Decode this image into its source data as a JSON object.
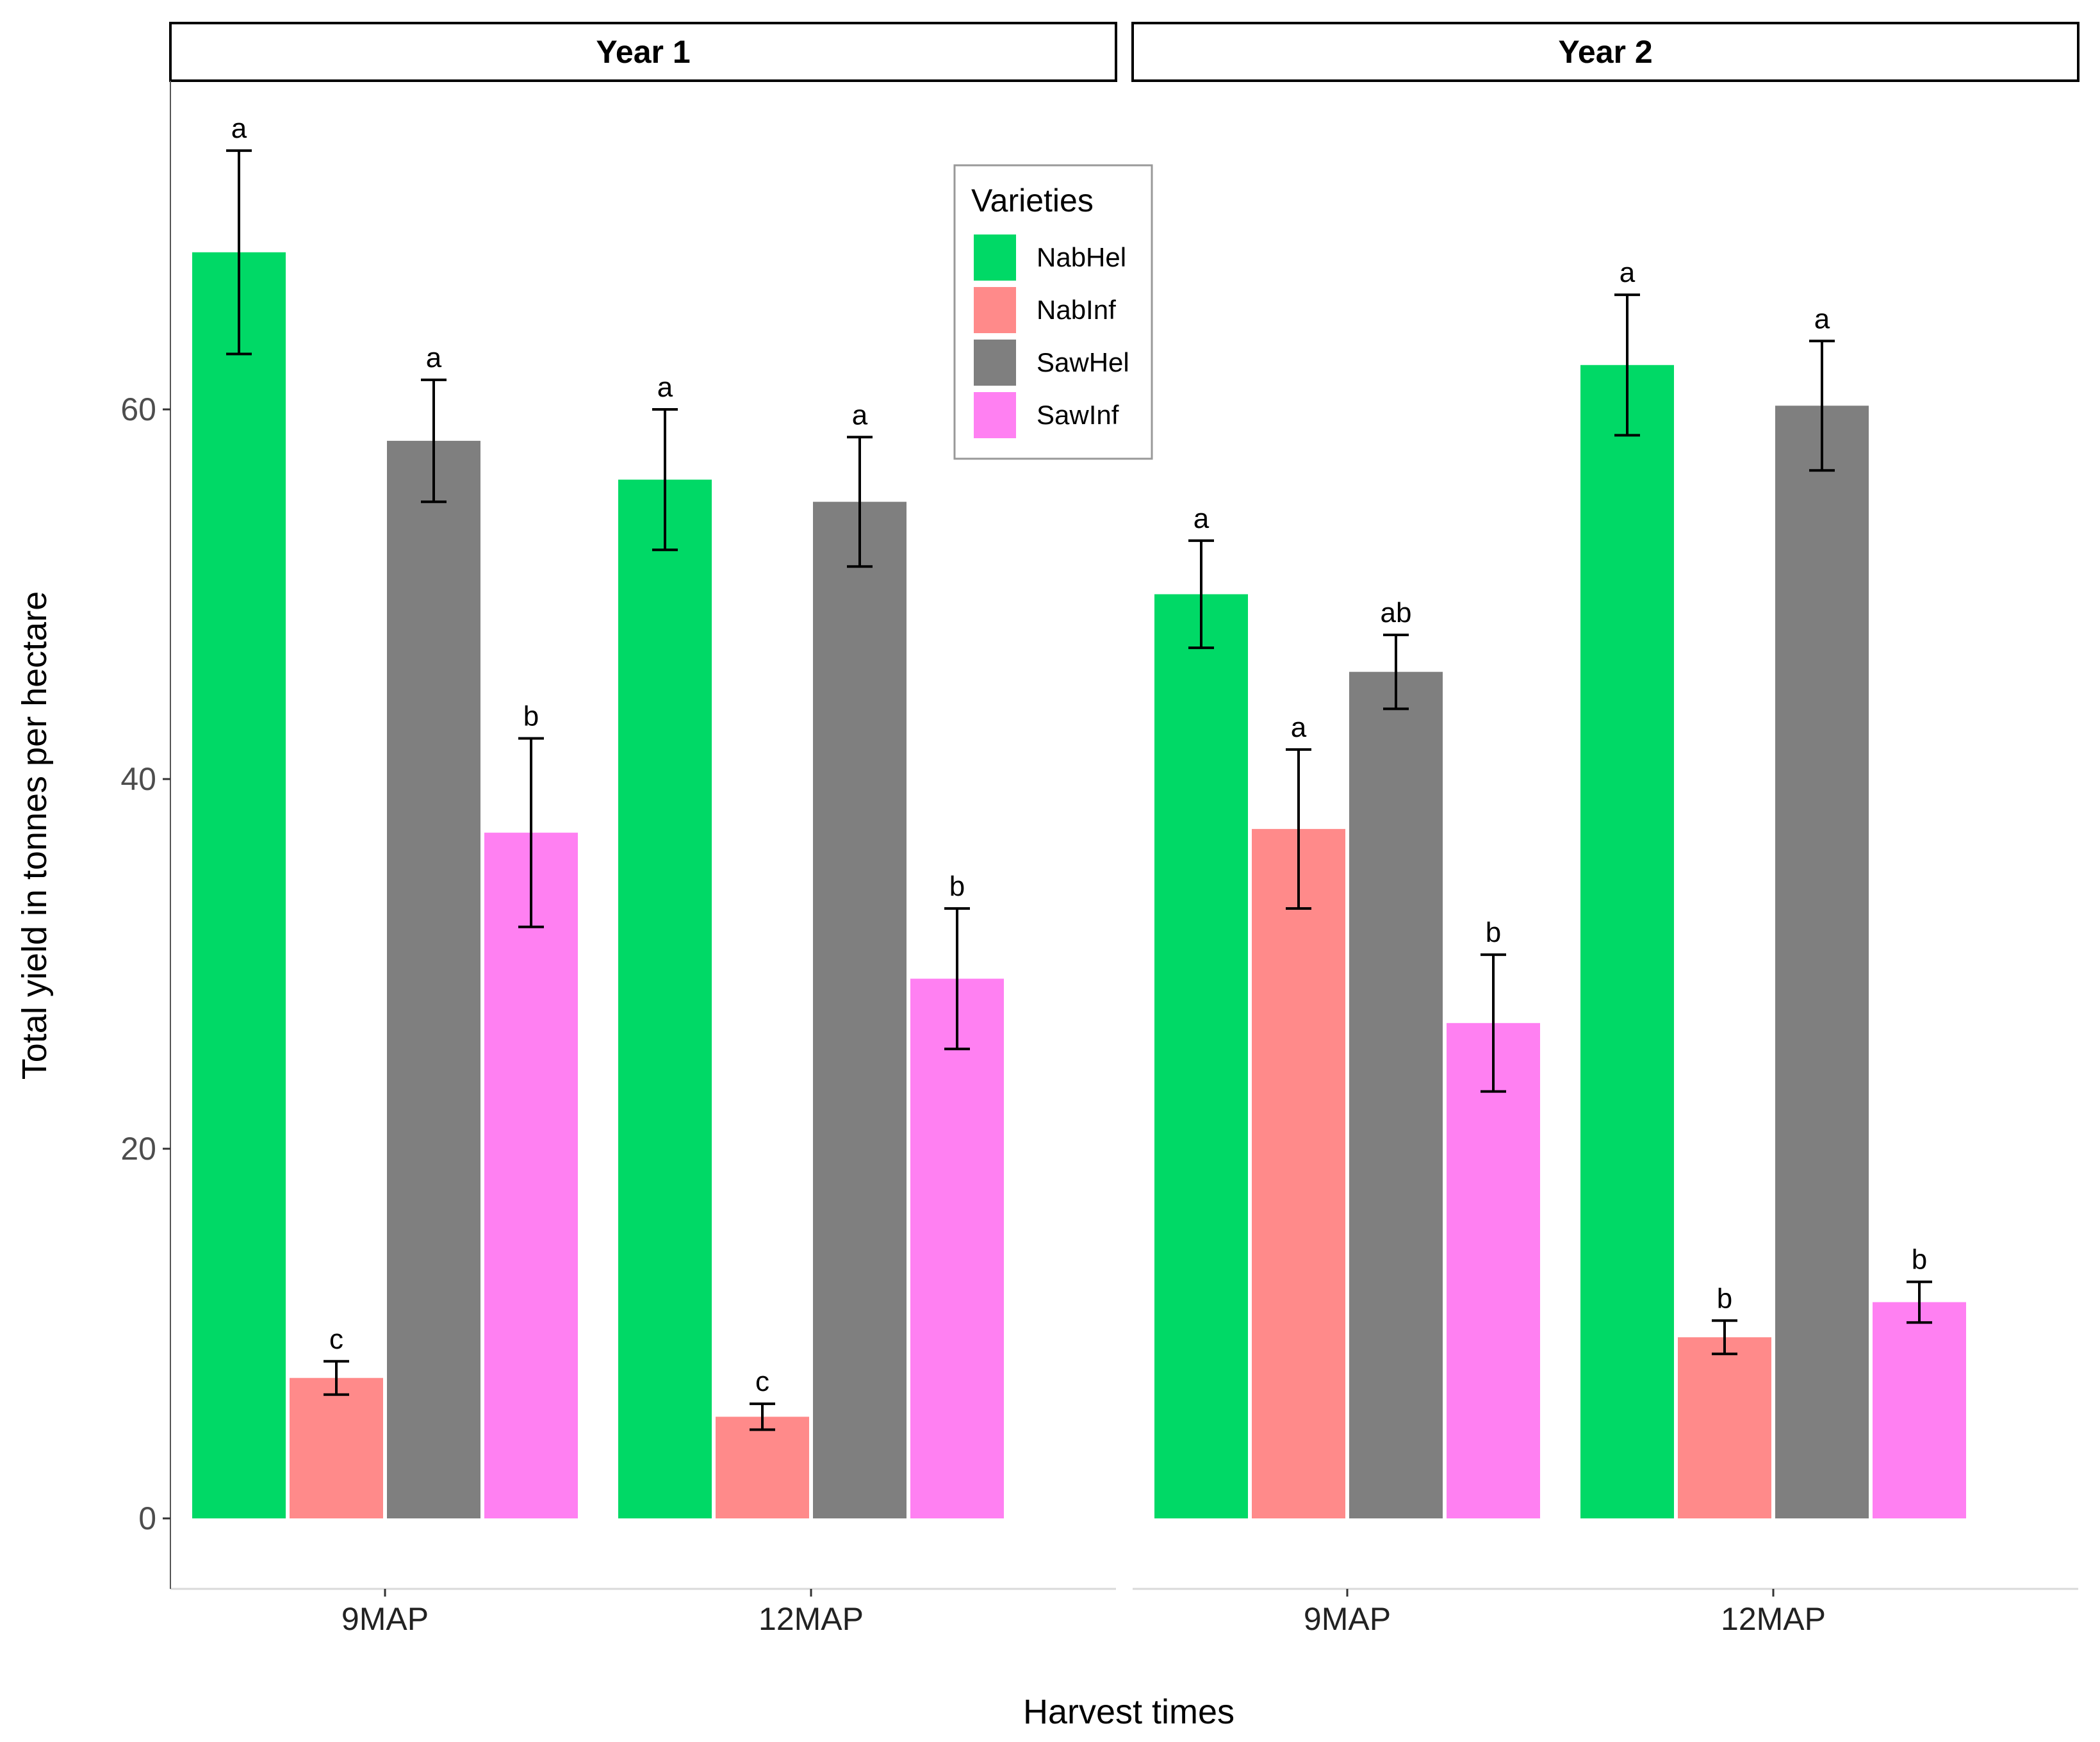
{
  "chart_data": {
    "type": "bar",
    "ylabel": "Total yield in tonnes per hectare",
    "xlabel": "Harvest times",
    "ylim": [
      0,
      76
    ],
    "yticks": [
      0,
      20,
      40,
      60
    ],
    "grid": false,
    "legend": {
      "title": "Varieties",
      "placement": "top-center inside Year 1 panel",
      "entries": [
        "NabHel",
        "NabInf",
        "SawHel",
        "SawInf"
      ]
    },
    "colors": {
      "NabHel": "#00d966",
      "NabInf": "#ff8a8a",
      "SawHel": "#7f7f7f",
      "SawInf": "#ff80f2"
    },
    "categories": [
      "9MAP",
      "12MAP"
    ],
    "panels": [
      {
        "title": "Year 1",
        "series": [
          {
            "name": "NabHel",
            "values": [
              68.5,
              56.2
            ],
            "errors": [
              5.5,
              3.8
            ],
            "labels": [
              "a",
              "a"
            ]
          },
          {
            "name": "NabInf",
            "values": [
              7.6,
              5.5
            ],
            "errors": [
              0.9,
              0.7
            ],
            "labels": [
              "c",
              "c"
            ]
          },
          {
            "name": "SawHel",
            "values": [
              58.3,
              55.0
            ],
            "errors": [
              3.3,
              3.5
            ],
            "labels": [
              "a",
              "a"
            ]
          },
          {
            "name": "SawInf",
            "values": [
              37.1,
              29.2
            ],
            "errors": [
              5.1,
              3.8
            ],
            "labels": [
              "b",
              "b"
            ]
          }
        ]
      },
      {
        "title": "Year 2",
        "series": [
          {
            "name": "NabHel",
            "values": [
              50.0,
              62.4
            ],
            "errors": [
              2.9,
              3.8
            ],
            "labels": [
              "a",
              "a"
            ]
          },
          {
            "name": "NabInf",
            "values": [
              37.3,
              9.8
            ],
            "errors": [
              4.3,
              0.9
            ],
            "labels": [
              "a",
              "b"
            ]
          },
          {
            "name": "SawHel",
            "values": [
              45.8,
              60.2
            ],
            "errors": [
              2.0,
              3.5
            ],
            "labels": [
              "ab",
              "a"
            ]
          },
          {
            "name": "SawInf",
            "values": [
              26.8,
              11.7
            ],
            "errors": [
              3.7,
              1.1
            ],
            "labels": [
              "b",
              "b"
            ]
          }
        ]
      }
    ]
  }
}
